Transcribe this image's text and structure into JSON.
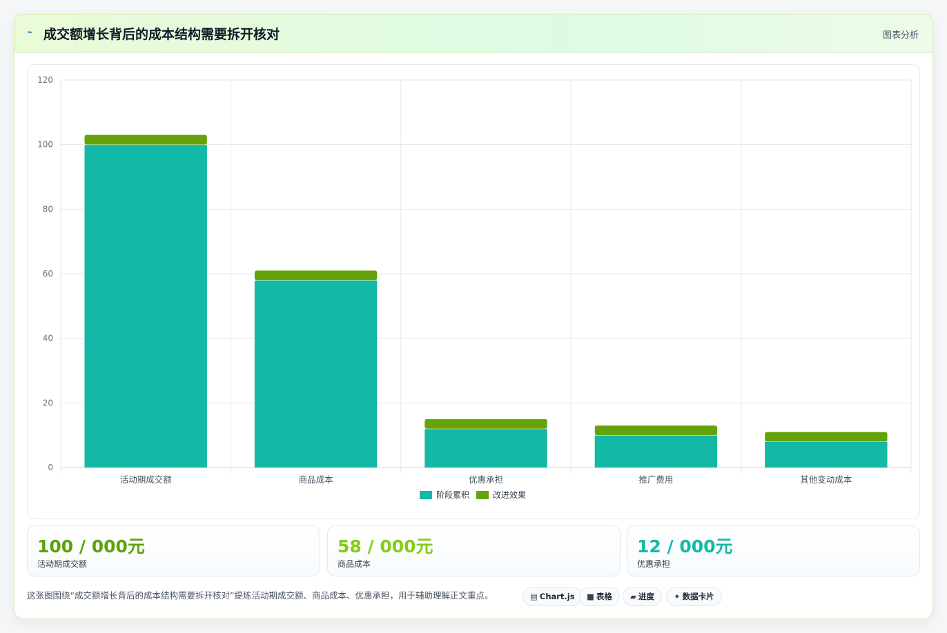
{
  "header": {
    "icon": "chart-line-icon",
    "title": "成交额增长背后的成本结构需要拆开核对",
    "tag": "图表分析"
  },
  "chart_data": {
    "type": "bar",
    "stacked": true,
    "categories": [
      "活动期成交额",
      "商品成本",
      "优惠承担",
      "推广费用",
      "其他变动成本"
    ],
    "series": [
      {
        "name": "阶段累积",
        "values": [
          100,
          58,
          12,
          10,
          8
        ],
        "color": "#14b8a6"
      },
      {
        "name": "改进效果",
        "values": [
          3,
          3,
          3,
          3,
          3
        ],
        "color": "#65a30d"
      }
    ],
    "ylim": [
      0,
      120
    ],
    "yticks": [
      0,
      20,
      40,
      60,
      80,
      100,
      120
    ],
    "grid": true,
    "legend": "bottom"
  },
  "stats": [
    {
      "value": "100 / 000元",
      "label": "活动期成交额",
      "color": "#5fa10c"
    },
    {
      "value": "58 / 000元",
      "label": "商品成本",
      "color": "#84cc16"
    },
    {
      "value": "12 / 000元",
      "label": "优惠承担",
      "color": "#14b8a6"
    }
  ],
  "footer": {
    "note": "这张图围绕“成交额增长背后的成本结构需要拆开核对”提炼活动期成交额、商品成本、优惠承担，用于辅助理解正文重点。",
    "pills": [
      {
        "icon": "▤",
        "label": "Chart.js"
      },
      {
        "icon": "■",
        "label": "表格"
      },
      {
        "icon": "▰",
        "label": "进度"
      },
      {
        "icon": "✦",
        "label": "数据卡片"
      }
    ]
  }
}
